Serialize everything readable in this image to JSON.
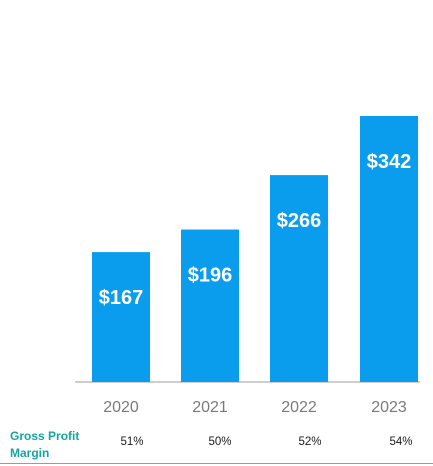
{
  "colors": {
    "bar": "#0a9dee",
    "axis": "#bdbdbd",
    "metric_label": "#16a6a0"
  },
  "chart_data": {
    "type": "bar",
    "title": "",
    "xlabel": "",
    "ylabel": "",
    "categories": [
      "2020",
      "2021",
      "2022",
      "2023"
    ],
    "values": [
      167,
      196,
      266,
      342
    ],
    "data_labels": [
      "$167",
      "$196",
      "$266",
      "$342"
    ],
    "ylim": [
      0,
      342
    ],
    "grid": false,
    "legend": "none"
  },
  "metric": {
    "label": "Gross Profit Margin",
    "values": [
      "51%",
      "50%",
      "52%",
      "54%"
    ]
  }
}
